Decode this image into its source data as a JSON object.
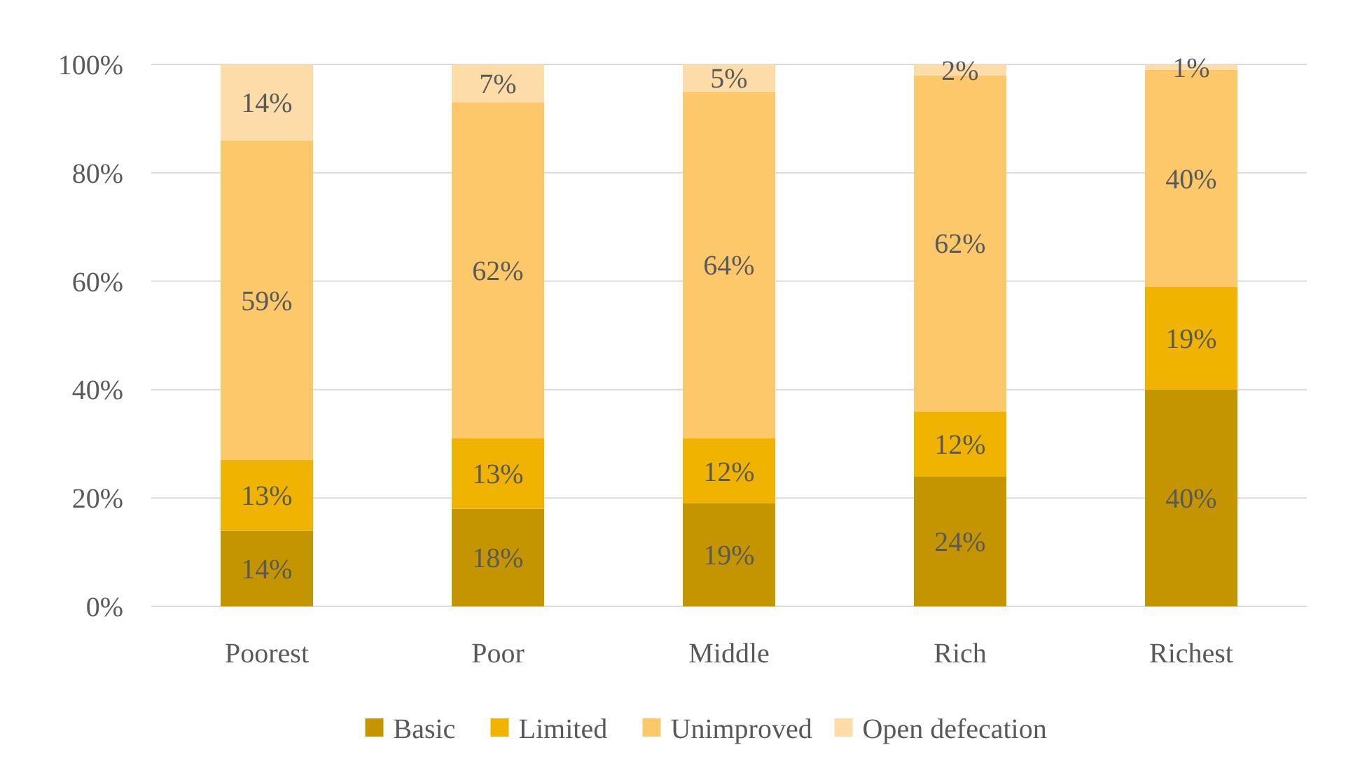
{
  "chart_data": {
    "type": "bar",
    "stacked": true,
    "categories": [
      "Poorest",
      "Poor",
      "Middle",
      "Rich",
      "Richest"
    ],
    "series": [
      {
        "name": "Basic",
        "color": "#c59500",
        "values": [
          14,
          18,
          19,
          24,
          40
        ],
        "value_labels": [
          "14%",
          "18%",
          "19%",
          "24%",
          "40%"
        ]
      },
      {
        "name": "Limited",
        "color": "#f0b400",
        "values": [
          13,
          13,
          12,
          12,
          19
        ],
        "value_labels": [
          "13%",
          "13%",
          "12%",
          "12%",
          "19%"
        ]
      },
      {
        "name": "Unimproved",
        "color": "#fdc86a",
        "values": [
          59,
          62,
          64,
          62,
          40
        ],
        "value_labels": [
          "59%",
          "62%",
          "64%",
          "62%",
          "40%"
        ]
      },
      {
        "name": "Open defecation",
        "color": "#fddca7",
        "values": [
          14,
          7,
          5,
          2,
          1
        ],
        "value_labels": [
          "14%",
          "7%",
          "5%",
          "2%",
          "1%"
        ]
      }
    ],
    "ylim": [
      0,
      100
    ],
    "yticks": [
      {
        "value": 0,
        "label": "0%"
      },
      {
        "value": 20,
        "label": "20%"
      },
      {
        "value": 40,
        "label": "40%"
      },
      {
        "value": 60,
        "label": "60%"
      },
      {
        "value": 80,
        "label": "80%"
      },
      {
        "value": 100,
        "label": "100%"
      }
    ],
    "grid": "y",
    "legend": "bottom"
  }
}
